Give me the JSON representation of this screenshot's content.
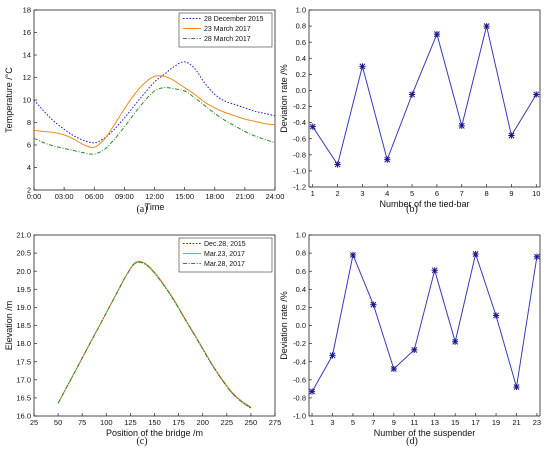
{
  "chart_data": [
    {
      "type": "line",
      "panel_label": "(a)",
      "xlabel": "Time",
      "ylabel": "Temperature /°C",
      "x_ticks": [
        "0:00",
        "03:00",
        "06:00",
        "09:00",
        "12:00",
        "15:00",
        "18:00",
        "21:00",
        "24:00"
      ],
      "ylim": [
        2,
        18
      ],
      "y_ticks": [
        "2",
        "4",
        "6",
        "8",
        "10",
        "12",
        "14",
        "16",
        "18"
      ],
      "legend_position": "top-right",
      "series": [
        {
          "name": "28 December 2015",
          "color": "#1f1fcc",
          "dash": "dotted",
          "x": [
            0,
            1,
            2,
            3,
            4,
            5,
            6,
            7,
            8,
            9,
            10,
            11,
            12,
            13,
            14,
            15,
            16,
            17,
            18,
            19,
            20,
            21,
            22,
            23,
            24
          ],
          "y": [
            10.0,
            9.0,
            8.1,
            7.4,
            6.8,
            6.4,
            6.2,
            6.6,
            7.4,
            8.4,
            9.5,
            10.6,
            11.6,
            12.3,
            13.0,
            13.4,
            12.8,
            11.5,
            10.5,
            9.9,
            9.6,
            9.3,
            9.0,
            8.8,
            8.6
          ]
        },
        {
          "name": "23 March 2017",
          "color": "#f08a1c",
          "dash": "solid",
          "x": [
            0,
            1,
            2,
            3,
            4,
            5,
            6,
            7,
            8,
            9,
            10,
            11,
            12,
            13,
            14,
            15,
            16,
            17,
            18,
            19,
            20,
            21,
            22,
            23,
            24
          ],
          "y": [
            7.3,
            7.2,
            7.1,
            6.9,
            6.5,
            6.0,
            5.8,
            6.5,
            7.8,
            9.2,
            10.5,
            11.5,
            12.1,
            12.1,
            11.7,
            11.1,
            10.5,
            9.8,
            9.3,
            8.9,
            8.6,
            8.3,
            8.1,
            7.9,
            7.8
          ]
        },
        {
          "name": "28 March 2017",
          "color": "#2a8a2a",
          "dash": "dashdot",
          "x": [
            0,
            1,
            2,
            3,
            4,
            5,
            6,
            7,
            8,
            9,
            10,
            11,
            12,
            13,
            14,
            15,
            16,
            17,
            18,
            19,
            20,
            21,
            22,
            23,
            24
          ],
          "y": [
            6.6,
            6.2,
            5.9,
            5.7,
            5.5,
            5.3,
            5.2,
            5.6,
            6.5,
            7.6,
            8.8,
            9.9,
            10.8,
            11.1,
            11.0,
            10.8,
            10.2,
            9.5,
            8.8,
            8.2,
            7.7,
            7.2,
            6.8,
            6.5,
            6.2
          ]
        }
      ]
    },
    {
      "type": "line",
      "panel_label": "(b)",
      "xlabel": "Number of the tied-bar",
      "ylabel": "Deviation rate /%",
      "x_ticks": [
        "1",
        "2",
        "3",
        "4",
        "5",
        "6",
        "7",
        "8",
        "9",
        "10"
      ],
      "ylim": [
        -1.2,
        1.0
      ],
      "y_ticks": [
        "-1.2",
        "-1.0",
        "-0.8",
        "-0.6",
        "-0.4",
        "-0.2",
        "0.0",
        "0.2",
        "0.4",
        "0.6",
        "0.8",
        "1.0"
      ],
      "series": [
        {
          "color": "#3a3ab8",
          "marker": "star",
          "x": [
            1,
            2,
            3,
            4,
            5,
            6,
            7,
            8,
            9,
            10
          ],
          "y": [
            -0.45,
            -0.92,
            0.3,
            -0.86,
            -0.05,
            0.7,
            -0.44,
            0.8,
            -0.56,
            -0.05
          ]
        }
      ]
    },
    {
      "type": "line",
      "panel_label": "(c)",
      "xlabel": "Position of the bridge /m",
      "ylabel": "Elevation /m",
      "x_ticks": [
        "25",
        "50",
        "75",
        "100",
        "125",
        "150",
        "175",
        "200",
        "225",
        "250",
        "275"
      ],
      "xlim": [
        25,
        275
      ],
      "ylim": [
        16.0,
        21.0
      ],
      "y_ticks": [
        "16.0",
        "16.5",
        "17.0",
        "17.5",
        "18.0",
        "18.5",
        "19.0",
        "19.5",
        "20.0",
        "20.5",
        "21.0"
      ],
      "legend_position": "top-right",
      "series": [
        {
          "name": "Dec.28, 2015",
          "color": "#1f1fcc",
          "dash": "dotted",
          "x": [
            50,
            60,
            70,
            80,
            90,
            100,
            110,
            120,
            130,
            140,
            150,
            160,
            170,
            180,
            190,
            200,
            210,
            220,
            230,
            240,
            250
          ],
          "y": [
            16.35,
            16.85,
            17.35,
            17.85,
            18.35,
            18.85,
            19.35,
            19.85,
            20.22,
            20.2,
            19.95,
            19.6,
            19.2,
            18.75,
            18.3,
            17.85,
            17.4,
            17.0,
            16.65,
            16.4,
            16.22
          ]
        },
        {
          "name": "Mar.23, 2017",
          "color": "#f08a1c",
          "dash": "solid",
          "x": [
            50,
            60,
            70,
            80,
            90,
            100,
            110,
            120,
            130,
            140,
            150,
            160,
            170,
            180,
            190,
            200,
            210,
            220,
            230,
            240,
            250
          ],
          "y": [
            16.35,
            16.85,
            17.35,
            17.85,
            18.35,
            18.85,
            19.35,
            19.85,
            20.24,
            20.22,
            19.97,
            19.62,
            19.22,
            18.77,
            18.32,
            17.87,
            17.42,
            17.02,
            16.67,
            16.42,
            16.25
          ]
        },
        {
          "name": "Mar.28, 2017",
          "color": "#2a8a2a",
          "dash": "dashdot",
          "x": [
            50,
            60,
            70,
            80,
            90,
            100,
            110,
            120,
            130,
            140,
            150,
            160,
            170,
            180,
            190,
            200,
            210,
            220,
            230,
            240,
            250
          ],
          "y": [
            16.35,
            16.85,
            17.35,
            17.85,
            18.35,
            18.85,
            19.35,
            19.85,
            20.22,
            20.2,
            19.95,
            19.6,
            19.2,
            18.75,
            18.3,
            17.85,
            17.4,
            17.0,
            16.65,
            16.4,
            16.22
          ]
        }
      ]
    },
    {
      "type": "line",
      "panel_label": "(d)",
      "xlabel": "Number of the suspender",
      "ylabel": "Deviation rate /%",
      "x_ticks": [
        "1",
        "3",
        "5",
        "7",
        "9",
        "11",
        "13",
        "15",
        "17",
        "19",
        "21",
        "23"
      ],
      "ylim": [
        -1.0,
        1.0
      ],
      "y_ticks": [
        "-1.0",
        "-0.8",
        "-0.6",
        "-0.4",
        "-0.2",
        "0.0",
        "0.2",
        "0.4",
        "0.6",
        "0.8",
        "1.0"
      ],
      "series": [
        {
          "color": "#3a3ab8",
          "marker": "star",
          "x": [
            1,
            3,
            5,
            7,
            9,
            11,
            13,
            15,
            17,
            19,
            21,
            23
          ],
          "y": [
            -0.73,
            -0.33,
            0.78,
            0.23,
            -0.48,
            -0.27,
            0.61,
            -0.18,
            0.79,
            0.11,
            -0.68,
            0.76
          ]
        }
      ]
    }
  ]
}
